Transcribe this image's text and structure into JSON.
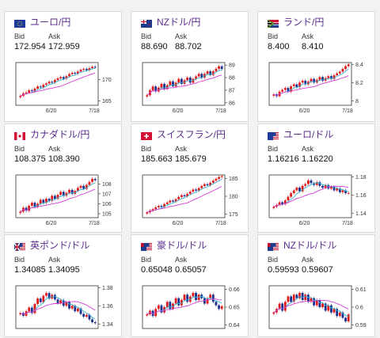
{
  "labels": {
    "bid": "Bid",
    "ask": "Ask"
  },
  "colors": {
    "up": "#e01a1a",
    "down": "#1c2f8c",
    "ma_short": "#35b6d3",
    "ma_long": "#d43bd4",
    "pair_text": "#5b2d8e"
  },
  "cards": [
    {
      "pair": "ユーロ/円",
      "flag": "eu-flag-icon",
      "bid": "172.954",
      "ask": "172.959",
      "chart_data": {
        "type": "candlestick",
        "x_ticks": [
          "6/20",
          "7/18"
        ],
        "y_ticks": [
          "170",
          "165"
        ],
        "ylim": [
          164,
          174
        ],
        "close": [
          166.2,
          166.8,
          167.0,
          167.5,
          167.3,
          167.9,
          168.4,
          168.2,
          168.8,
          169.1,
          169.5,
          169.3,
          169.9,
          170.3,
          170.6,
          170.2,
          170.8,
          171.3,
          171.6,
          171.4,
          171.9,
          172.3,
          172.5,
          172.2,
          172.7,
          173.0,
          172.95
        ]
      }
    },
    {
      "pair": "NZドル/円",
      "flag": "nz-flag-icon",
      "bid": "88.690",
      "ask": "88.702",
      "chart_data": {
        "type": "candlestick",
        "x_ticks": [
          "6/20",
          "7/18"
        ],
        "y_ticks": [
          "89",
          "88",
          "87",
          "86"
        ],
        "ylim": [
          85.8,
          89.2
        ],
        "close": [
          86.6,
          87.0,
          87.3,
          86.9,
          87.2,
          87.5,
          87.1,
          87.4,
          87.7,
          87.3,
          87.6,
          87.9,
          87.5,
          87.8,
          88.0,
          87.6,
          87.9,
          88.1,
          88.3,
          88.0,
          88.3,
          88.5,
          88.2,
          88.5,
          88.7,
          88.9,
          88.69
        ]
      }
    },
    {
      "pair": "ランド/円",
      "flag": "za-flag-icon",
      "bid": "8.400",
      "ask": "8.410",
      "chart_data": {
        "type": "candlestick",
        "x_ticks": [
          "6/20",
          "7/18"
        ],
        "y_ticks": [
          "8.4",
          "8.2",
          "8"
        ],
        "ylim": [
          7.95,
          8.42
        ],
        "close": [
          8.07,
          8.05,
          8.1,
          8.12,
          8.14,
          8.1,
          8.16,
          8.18,
          8.15,
          8.2,
          8.22,
          8.18,
          8.21,
          8.24,
          8.2,
          8.23,
          8.26,
          8.22,
          8.25,
          8.27,
          8.24,
          8.28,
          8.3,
          8.32,
          8.35,
          8.38,
          8.4
        ]
      }
    },
    {
      "pair": "カナダドル/円",
      "flag": "ca-flag-icon",
      "bid": "108.375",
      "ask": "108.390",
      "chart_data": {
        "type": "candlestick",
        "x_ticks": [
          "6/20",
          "7/18"
        ],
        "y_ticks": [
          "108",
          "107",
          "106",
          "105"
        ],
        "ylim": [
          104.6,
          108.9
        ],
        "close": [
          105.2,
          105.6,
          105.3,
          105.8,
          106.1,
          105.7,
          106.0,
          106.4,
          106.1,
          106.5,
          106.3,
          106.8,
          106.5,
          106.9,
          107.2,
          106.8,
          107.1,
          107.4,
          107.0,
          107.3,
          107.6,
          107.8,
          107.5,
          107.9,
          108.2,
          108.5,
          108.37
        ]
      }
    },
    {
      "pair": "スイスフラン/円",
      "flag": "ch-flag-icon",
      "bid": "185.663",
      "ask": "185.679",
      "chart_data": {
        "type": "candlestick",
        "x_ticks": [
          "6/20",
          "7/18"
        ],
        "y_ticks": [
          "185",
          "180",
          "175"
        ],
        "ylim": [
          174,
          186
        ],
        "close": [
          175.5,
          176.0,
          176.4,
          176.9,
          177.3,
          177.0,
          177.8,
          178.3,
          178.8,
          178.5,
          179.2,
          179.8,
          180.3,
          180.0,
          180.7,
          181.3,
          181.9,
          181.6,
          182.3,
          182.9,
          183.4,
          183.1,
          183.8,
          184.4,
          184.9,
          185.4,
          185.66
        ]
      }
    },
    {
      "pair": "ユーロ/ドル",
      "flag": "eu-us-flag-icon",
      "bid": "1.16216",
      "ask": "1.16220",
      "chart_data": {
        "type": "candlestick",
        "x_ticks": [
          "6/20",
          "7/18"
        ],
        "y_ticks": [
          "1.18",
          "1.16",
          "1.14"
        ],
        "ylim": [
          1.135,
          1.182
        ],
        "close": [
          1.147,
          1.149,
          1.152,
          1.15,
          1.154,
          1.158,
          1.162,
          1.165,
          1.168,
          1.164,
          1.17,
          1.172,
          1.176,
          1.173,
          1.171,
          1.174,
          1.17,
          1.168,
          1.171,
          1.167,
          1.169,
          1.165,
          1.167,
          1.163,
          1.165,
          1.162,
          1.1622
        ]
      }
    },
    {
      "pair": "英ポンド/ドル",
      "flag": "gb-us-flag-icon",
      "bid": "1.34085",
      "ask": "1.34095",
      "chart_data": {
        "type": "candlestick",
        "x_ticks": [],
        "y_ticks": [
          "1.38",
          "1.36",
          "1.34"
        ],
        "ylim": [
          1.335,
          1.382
        ],
        "close": [
          1.352,
          1.349,
          1.354,
          1.358,
          1.352,
          1.362,
          1.368,
          1.364,
          1.371,
          1.374,
          1.368,
          1.372,
          1.367,
          1.363,
          1.366,
          1.36,
          1.364,
          1.357,
          1.36,
          1.354,
          1.357,
          1.351,
          1.348,
          1.35,
          1.345,
          1.342,
          1.3409
        ]
      }
    },
    {
      "pair": "豪ドル/ドル",
      "flag": "au-us-flag-icon",
      "bid": "0.65048",
      "ask": "0.65057",
      "chart_data": {
        "type": "candlestick",
        "x_ticks": [],
        "y_ticks": [
          "0.66",
          "0.65",
          "0.64"
        ],
        "ylim": [
          0.638,
          0.662
        ],
        "close": [
          0.646,
          0.648,
          0.645,
          0.649,
          0.651,
          0.647,
          0.65,
          0.653,
          0.649,
          0.652,
          0.655,
          0.651,
          0.654,
          0.657,
          0.653,
          0.656,
          0.658,
          0.654,
          0.657,
          0.655,
          0.652,
          0.655,
          0.657,
          0.653,
          0.651,
          0.649,
          0.6505
        ]
      }
    },
    {
      "pair": "NZドル/ドル",
      "flag": "nz-us-flag-icon",
      "bid": "0.59593",
      "ask": "0.59607",
      "chart_data": {
        "type": "candlestick",
        "x_ticks": [],
        "y_ticks": [
          "0.61",
          "0.6",
          "0.59"
        ],
        "ylim": [
          0.588,
          0.612
        ],
        "close": [
          0.597,
          0.599,
          0.602,
          0.598,
          0.603,
          0.606,
          0.603,
          0.607,
          0.605,
          0.608,
          0.604,
          0.607,
          0.603,
          0.605,
          0.601,
          0.604,
          0.6,
          0.602,
          0.598,
          0.601,
          0.597,
          0.599,
          0.595,
          0.597,
          0.594,
          0.592,
          0.5959
        ]
      }
    }
  ]
}
